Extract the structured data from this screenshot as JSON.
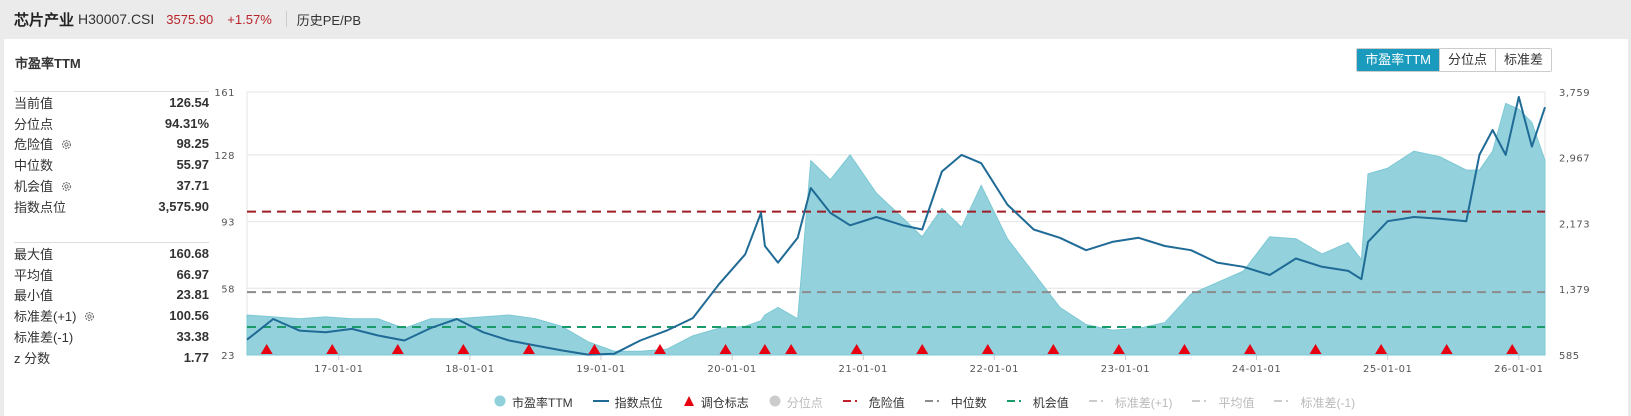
{
  "header": {
    "name": "芯片产业",
    "code": "H30007.CSI",
    "price": "3575.90",
    "change": "+1.57%",
    "tab": "历史PE/PB"
  },
  "card": {
    "title": "市盈率TTM",
    "segments": [
      {
        "label": "市盈率TTM",
        "active": true
      },
      {
        "label": "分位点",
        "active": false
      },
      {
        "label": "标准差",
        "active": false
      }
    ]
  },
  "stats_primary": [
    {
      "label": "当前值",
      "value": "126.54",
      "gear": false
    },
    {
      "label": "分位点",
      "value": "94.31%",
      "gear": false
    },
    {
      "label": "危险值",
      "value": "98.25",
      "gear": true
    },
    {
      "label": "中位数",
      "value": "55.97",
      "gear": false
    },
    {
      "label": "机会值",
      "value": "37.71",
      "gear": true
    },
    {
      "label": "指数点位",
      "value": "3,575.90",
      "gear": false
    }
  ],
  "stats_secondary": [
    {
      "label": "最大值",
      "value": "160.68",
      "gear": false
    },
    {
      "label": "平均值",
      "value": "66.97",
      "gear": false
    },
    {
      "label": "最小值",
      "value": "23.81",
      "gear": false
    },
    {
      "label": "标准差(+1)",
      "value": "100.56",
      "gear": true
    },
    {
      "label": "标准差(-1)",
      "value": "33.38",
      "gear": false
    },
    {
      "label": "z 分数",
      "value": "1.77",
      "gear": false
    }
  ],
  "colors": {
    "pe_area": "#93d2dc",
    "pe_area_edge": "#7cc8d4",
    "index_line": "#1f6b96",
    "marker": "#e60012",
    "danger": "#a01c24",
    "median": "#8c8c8c",
    "opportunity": "#1b9a6a",
    "active_tab": "#1a9bbd",
    "up": "#b8242b"
  },
  "legend": [
    {
      "label": "市盈率TTM",
      "type": "circle",
      "color": "#8fd0da",
      "off": false
    },
    {
      "label": "指数点位",
      "type": "line",
      "color": "#1f6b96",
      "off": false
    },
    {
      "label": "调仓标志",
      "type": "triangle",
      "color": "#e60012",
      "off": false
    },
    {
      "label": "分位点",
      "type": "circle",
      "color": "#cccccc",
      "off": true
    },
    {
      "label": "危险值",
      "type": "dash",
      "color": "#c0202a",
      "off": false
    },
    {
      "label": "中位数",
      "type": "dash",
      "color": "#8c8c8c",
      "off": false
    },
    {
      "label": "机会值",
      "type": "dash",
      "color": "#1b9a6a",
      "off": false
    },
    {
      "label": "标准差(+1)",
      "type": "dash",
      "color": "#cccccc",
      "off": true
    },
    {
      "label": "平均值",
      "type": "dash",
      "color": "#cccccc",
      "off": true
    },
    {
      "label": "标准差(-1)",
      "type": "dash",
      "color": "#cccccc",
      "off": true
    }
  ],
  "chart_data": {
    "type": "area",
    "title": "市盈率TTM",
    "xlabel": "",
    "ylabel_left": "市盈率TTM",
    "ylabel_right": "指数点位",
    "x_ticks": [
      "17-01-01",
      "18-01-01",
      "19-01-01",
      "20-01-01",
      "21-01-01",
      "22-01-01",
      "23-01-01",
      "24-01-01",
      "25-01-01",
      "26-01-01"
    ],
    "y_left_ticks": [
      23,
      58,
      93,
      128,
      161
    ],
    "y_right_ticks": [
      "585",
      "1,379",
      "2,173",
      "2,967",
      "3,759"
    ],
    "ylim_left": [
      23,
      161
    ],
    "ylim_right": [
      585,
      3759
    ],
    "grid": true,
    "legend_position": "bottom",
    "reference_lines": {
      "danger": 98.25,
      "median": 55.97,
      "opportunity": 37.71
    },
    "x": [
      2016.3,
      2016.5,
      2016.7,
      2016.9,
      2017.1,
      2017.3,
      2017.5,
      2017.7,
      2017.9,
      2018.1,
      2018.3,
      2018.5,
      2018.7,
      2018.9,
      2019.1,
      2019.3,
      2019.5,
      2019.7,
      2019.9,
      2020.1,
      2020.22,
      2020.25,
      2020.35,
      2020.5,
      2020.6,
      2020.75,
      2020.9,
      2021.1,
      2021.3,
      2021.45,
      2021.6,
      2021.75,
      2021.9,
      2022.1,
      2022.3,
      2022.5,
      2022.7,
      2022.9,
      2023.1,
      2023.3,
      2023.5,
      2023.7,
      2023.9,
      2024.1,
      2024.3,
      2024.5,
      2024.7,
      2024.8,
      2024.85,
      2025.0,
      2025.2,
      2025.4,
      2025.6,
      2025.7,
      2025.8,
      2025.9,
      2026.0,
      2026.1,
      2026.2
    ],
    "series": [
      {
        "name": "市盈率TTM",
        "axis": "left",
        "values": [
          44,
          43,
          42,
          43,
          42,
          42,
          37,
          42,
          42,
          43,
          44,
          42,
          38,
          30,
          25,
          25,
          26,
          33,
          37,
          38,
          41,
          44,
          48,
          42,
          125,
          115,
          128,
          108,
          95,
          85,
          100,
          90,
          112,
          84,
          66,
          48,
          39,
          36,
          37,
          40,
          55,
          61,
          67,
          85,
          84,
          76,
          82,
          73,
          118,
          121,
          130,
          127,
          120,
          120,
          130,
          155,
          152,
          145,
          125
        ]
      },
      {
        "name": "指数点位",
        "axis": "right",
        "values": [
          770,
          1020,
          880,
          860,
          900,
          820,
          760,
          910,
          1020,
          860,
          760,
          700,
          640,
          590,
          600,
          760,
          880,
          1030,
          1440,
          1800,
          2300,
          1900,
          1700,
          2000,
          2600,
          2300,
          2150,
          2250,
          2150,
          2100,
          2800,
          3000,
          2900,
          2400,
          2100,
          2000,
          1850,
          1950,
          2000,
          1900,
          1850,
          1700,
          1650,
          1550,
          1750,
          1650,
          1600,
          1500,
          1950,
          2200,
          2250,
          2230,
          2200,
          3000,
          3300,
          3000,
          3700,
          3100,
          3575
        ]
      },
      {
        "name": "调仓标志",
        "type": "markers",
        "x": [
          2016.45,
          2016.95,
          2017.45,
          2017.95,
          2018.45,
          2018.95,
          2019.45,
          2019.95,
          2020.25,
          2020.45,
          2020.95,
          2021.45,
          2021.95,
          2022.45,
          2022.95,
          2023.45,
          2023.95,
          2024.45,
          2024.95,
          2025.45,
          2025.95
        ]
      }
    ]
  }
}
